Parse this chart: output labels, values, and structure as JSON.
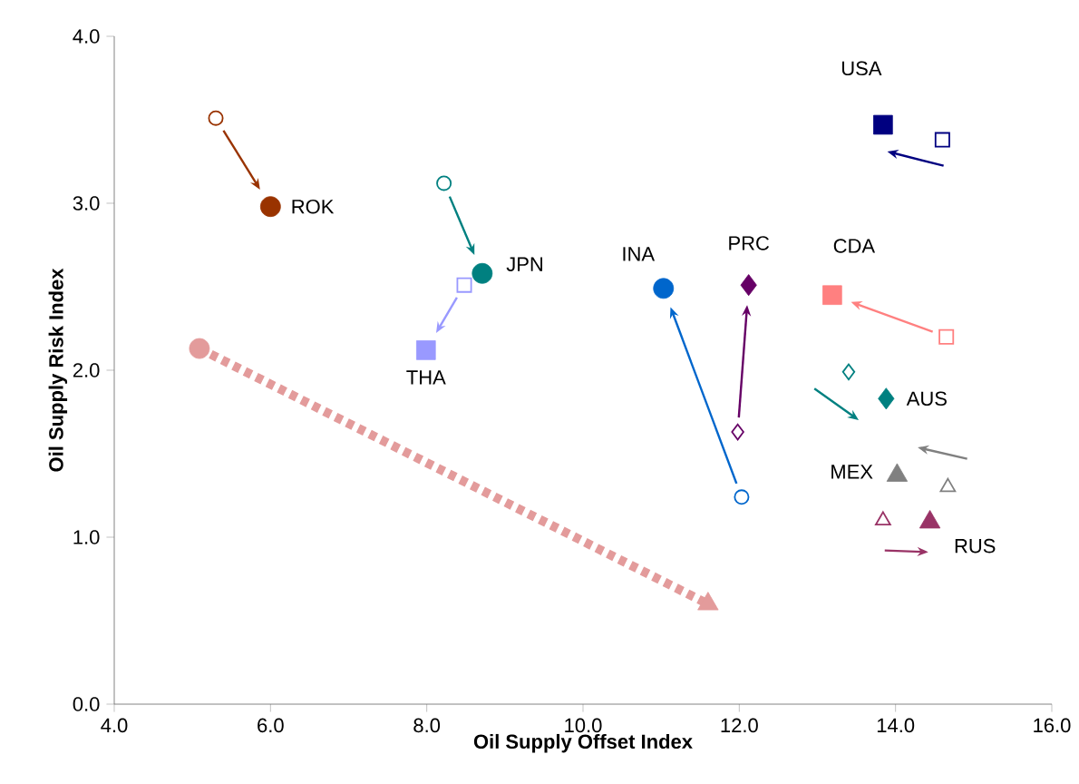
{
  "chart_data": {
    "type": "scatter",
    "xlabel": "Oil Supply Offset Index",
    "ylabel": "Oil Supply Risk Index",
    "xlim": [
      4,
      16
    ],
    "ylim": [
      0,
      4
    ],
    "xticks": [
      {
        "value": 4,
        "label": "4.0"
      },
      {
        "value": 6,
        "label": "6.0"
      },
      {
        "value": 8,
        "label": "8.0"
      },
      {
        "value": 10,
        "label": "10.0"
      },
      {
        "value": 12,
        "label": "12.0"
      },
      {
        "value": 14,
        "label": "14.0"
      },
      {
        "value": 16,
        "label": "16.0"
      }
    ],
    "yticks": [
      {
        "value": 0,
        "label": "0.0"
      },
      {
        "value": 1,
        "label": "1.0"
      },
      {
        "value": 2,
        "label": "2.0"
      },
      {
        "value": 3,
        "label": "3.0"
      },
      {
        "value": 4,
        "label": "4.0"
      }
    ],
    "series": [
      {
        "name": "ROK",
        "marker": "circle",
        "color": "#993300",
        "x": [
          5.3,
          6.0
        ],
        "values": [
          3.51,
          2.98
        ]
      },
      {
        "name": "JPN",
        "marker": "circle",
        "color": "#008080",
        "x": [
          8.22,
          8.71
        ],
        "values": [
          3.12,
          2.58
        ]
      },
      {
        "name": "THA",
        "marker": "square",
        "color": "#9999ff",
        "x": [
          8.48,
          7.99
        ],
        "values": [
          2.51,
          2.12
        ]
      },
      {
        "name": "USA",
        "marker": "square",
        "color": "#000080",
        "x": [
          14.6,
          13.84
        ],
        "values": [
          3.38,
          3.47
        ]
      },
      {
        "name": "INA",
        "marker": "circle",
        "color": "#0066cc",
        "x": [
          12.03,
          11.03
        ],
        "values": [
          1.24,
          2.49
        ]
      },
      {
        "name": "PRC",
        "marker": "diamond",
        "color": "#660066",
        "x": [
          11.98,
          12.12
        ],
        "values": [
          1.63,
          2.51
        ]
      },
      {
        "name": "CDA",
        "marker": "square",
        "color": "#ff8080",
        "x": [
          14.65,
          13.19
        ],
        "values": [
          2.2,
          2.45
        ]
      },
      {
        "name": "AUS",
        "marker": "diamond",
        "color": "#008080",
        "x": [
          13.4,
          13.88
        ],
        "values": [
          1.99,
          1.83
        ]
      },
      {
        "name": "MEX",
        "marker": "triangle",
        "color": "#808080",
        "x": [
          14.67,
          14.02
        ],
        "values": [
          1.3,
          1.37
        ]
      },
      {
        "name": "RUS",
        "marker": "triangle",
        "color": "#993366",
        "x": [
          13.84,
          14.44
        ],
        "values": [
          1.1,
          1.09
        ]
      },
      {
        "type": "line",
        "line_style": "dashed",
        "color": "#e39b9b",
        "x": [
          5.09,
          11.6
        ],
        "values": [
          2.13,
          0.6
        ]
      },
      {
        "marker": "circle",
        "color": "#e39b9b",
        "x": [
          5.09
        ],
        "values": [
          2.13
        ]
      },
      {
        "marker": "triangle",
        "color": "#e39b9b",
        "x": [
          11.6
        ],
        "values": [
          0.6
        ]
      }
    ]
  }
}
